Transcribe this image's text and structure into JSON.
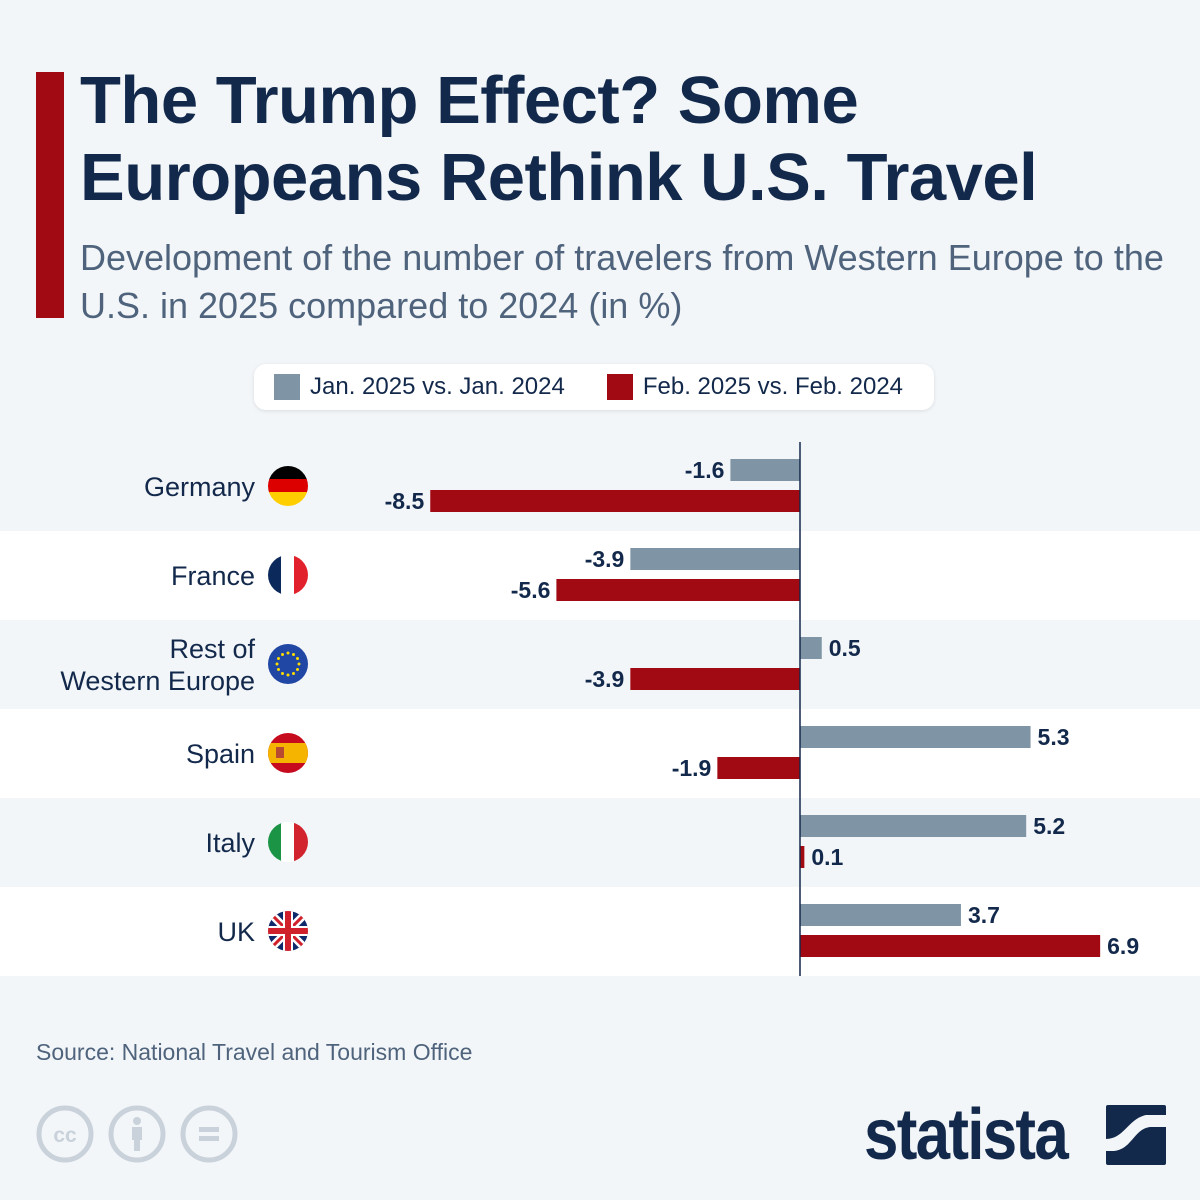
{
  "header": {
    "title": "The Trump Effect? Some Europeans Rethink U.S. Travel",
    "subtitle": "Development of the number of travelers from Western Europe to the U.S. in 2025 compared to 2024 (in %)"
  },
  "colors": {
    "accent": "#a10a12",
    "series_jan": "#7f95a6",
    "series_feb": "#a10a12",
    "text_dark": "#13294b",
    "text_muted": "#4f647c",
    "background": "#f3f6f9"
  },
  "chart_data": {
    "type": "bar",
    "orientation": "horizontal",
    "title": "The Trump Effect? Some Europeans Rethink U.S. Travel",
    "subtitle": "Development of the number of travelers from Western Europe to the U.S. in 2025 compared to 2024 (in %)",
    "xlabel": "",
    "ylabel": "",
    "unit": "%",
    "categories": [
      "Germany",
      "France",
      "Rest of Western Europe",
      "Spain",
      "Italy",
      "UK"
    ],
    "category_lines": [
      [
        "Germany"
      ],
      [
        "France"
      ],
      [
        "Rest of",
        "Western Europe"
      ],
      [
        "Spain"
      ],
      [
        "Italy"
      ],
      [
        "UK"
      ]
    ],
    "flags": [
      "germany-flag",
      "france-flag",
      "eu-flag",
      "spain-flag",
      "italy-flag",
      "uk-flag"
    ],
    "series": [
      {
        "name": "Jan. 2025 vs. Jan. 2024",
        "color": "#7f95a6",
        "values": [
          -1.6,
          -3.9,
          0.5,
          5.3,
          5.2,
          3.7
        ],
        "labels": [
          "-1.6",
          "-3.9",
          "0.5",
          "5.3",
          "5.2",
          "3.7"
        ]
      },
      {
        "name": "Feb. 2025 vs. Feb. 2024",
        "color": "#a10a12",
        "values": [
          -8.5,
          -5.6,
          -3.9,
          -1.9,
          0.1,
          6.9
        ],
        "labels": [
          "-8.5",
          "-5.6",
          "-3.9",
          "-1.9",
          "0.1",
          "6.9"
        ]
      }
    ],
    "xlim": [
      -8.5,
      6.9
    ],
    "grid": false,
    "zero_line": true,
    "legend": "top-center",
    "data_labels": true
  },
  "legend": {
    "items": [
      {
        "label": "Jan. 2025 vs. Jan. 2024",
        "color": "#7f95a6"
      },
      {
        "label": "Feb. 2025 vs. Feb. 2024",
        "color": "#a10a12"
      }
    ]
  },
  "footer": {
    "source": "Source: National Travel and Tourism Office",
    "license_icons": [
      "creative-commons-icon",
      "attribution-icon",
      "no-derivatives-icon"
    ],
    "brand": "statista"
  }
}
